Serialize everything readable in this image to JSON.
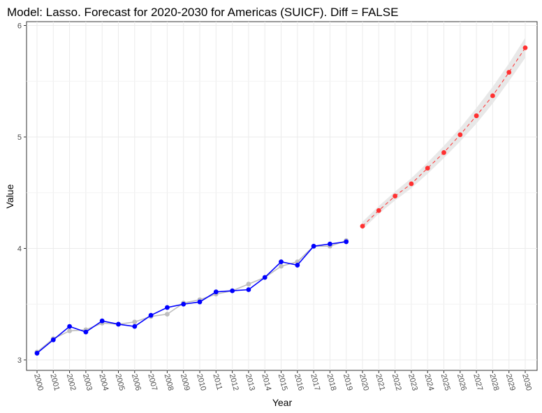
{
  "chart_data": {
    "type": "line",
    "title": "Model: Lasso. Forecast for 2020-2030 for Americas (SUICF). Diff = FALSE",
    "xlabel": "Year",
    "ylabel": "Value",
    "x_ticks": [
      "2000",
      "2001",
      "2002",
      "2003",
      "2004",
      "2005",
      "2006",
      "2007",
      "2008",
      "2009",
      "2010",
      "2011",
      "2012",
      "2013",
      "2014",
      "2015",
      "2016",
      "2017",
      "2018",
      "2019",
      "2020",
      "2021",
      "2022",
      "2023",
      "2024",
      "2025",
      "2026",
      "2027",
      "2028",
      "2029",
      "2030"
    ],
    "y_ticks": [
      "3",
      "4",
      "5",
      "6"
    ],
    "xlim": [
      2000,
      2030
    ],
    "ylim": [
      3,
      6
    ],
    "grid": true,
    "legend": "none",
    "series": [
      {
        "style": "solid-line-with-points",
        "color": "#bebebe",
        "x": [
          2000,
          2001,
          2002,
          2003,
          2004,
          2005,
          2006,
          2007,
          2008,
          2009,
          2010,
          2011,
          2012,
          2013,
          2014,
          2015,
          2016,
          2017,
          2018,
          2019
        ],
        "values": [
          3.07,
          3.19,
          3.26,
          3.27,
          3.33,
          3.32,
          3.34,
          3.39,
          3.41,
          3.51,
          3.54,
          3.59,
          3.62,
          3.68,
          3.74,
          3.84,
          3.88,
          4.02,
          4.02,
          4.07
        ]
      },
      {
        "style": "solid-line-with-points",
        "color": "#0000ff",
        "x": [
          2000,
          2001,
          2002,
          2003,
          2004,
          2005,
          2006,
          2007,
          2008,
          2009,
          2010,
          2011,
          2012,
          2013,
          2014,
          2015,
          2016,
          2017,
          2018,
          2019
        ],
        "values": [
          3.06,
          3.18,
          3.3,
          3.25,
          3.35,
          3.32,
          3.3,
          3.4,
          3.47,
          3.5,
          3.52,
          3.61,
          3.62,
          3.63,
          3.74,
          3.88,
          3.85,
          4.02,
          4.04,
          4.06
        ]
      },
      {
        "style": "dashed-line-with-points",
        "color": "#ff3030",
        "x": [
          2020,
          2021,
          2022,
          2023,
          2024,
          2025,
          2026,
          2027,
          2028,
          2029,
          2030
        ],
        "values": [
          4.2,
          4.34,
          4.47,
          4.58,
          4.72,
          4.86,
          5.02,
          5.19,
          5.37,
          5.58,
          5.8
        ],
        "band_color": "#e8e8e8",
        "lower": [
          4.17,
          4.31,
          4.43,
          4.54,
          4.67,
          4.81,
          4.96,
          5.12,
          5.3,
          5.5,
          5.71
        ],
        "upper": [
          4.24,
          4.38,
          4.51,
          4.63,
          4.77,
          4.92,
          5.08,
          5.26,
          5.45,
          5.66,
          5.89
        ]
      }
    ]
  }
}
